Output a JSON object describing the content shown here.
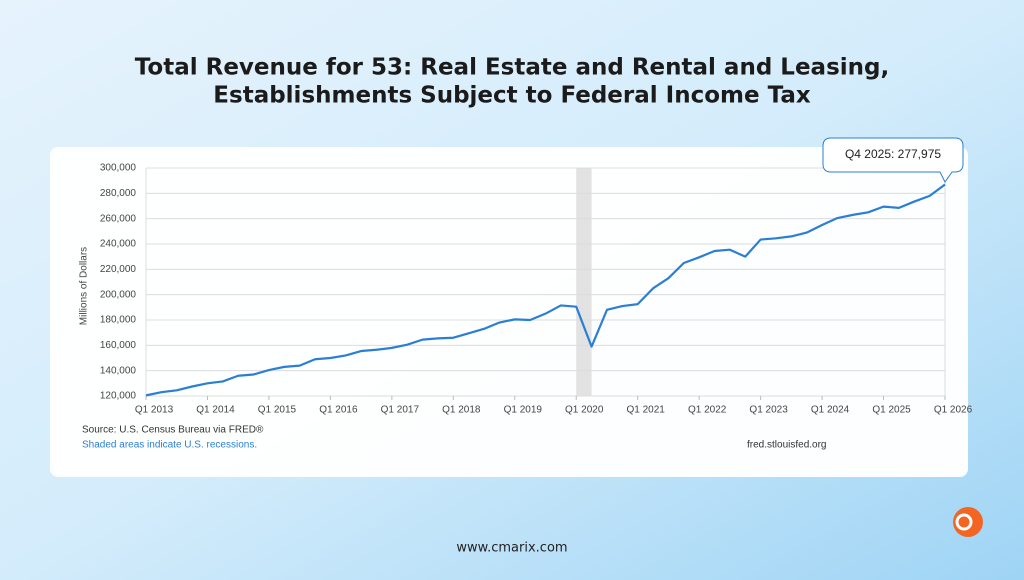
{
  "chart_data": {
    "type": "line",
    "title": [
      "Total Revenue for 53: Real Estate and Rental and Leasing,",
      "Establishments Subject to Federal Income Tax"
    ],
    "y_label": "Millions of Dollars",
    "annotation": "Q4 2025: 277,975",
    "source": "Source: U.S. Census Bureau via FRED®",
    "note": "Shaded areas indicate U.S. recessions.",
    "credit": "fred.stlouisfed.org",
    "footer": "www.cmarix.com",
    "x": [
      2013,
      2013.25,
      2013.5,
      2013.75,
      2014,
      2014.25,
      2014.5,
      2014.75,
      2015,
      2015.25,
      2015.5,
      2015.75,
      2016,
      2016.25,
      2016.5,
      2016.75,
      2017,
      2017.25,
      2017.5,
      2017.75,
      2018,
      2018.25,
      2018.5,
      2018.75,
      2019,
      2019.25,
      2019.5,
      2019.75,
      2020,
      2020.25,
      2020.5,
      2020.75,
      2021,
      2021.25,
      2021.5,
      2021.75,
      2022,
      2022.25,
      2022.5,
      2022.75,
      2023,
      2023.25,
      2023.5,
      2023.75,
      2024,
      2024.25,
      2024.5,
      2024.75,
      2025,
      2025.25,
      2025.5,
      2025.75,
      2026
    ],
    "series": [
      {
        "name": "Total Revenue",
        "color": "#2a7fd4",
        "values": [
          120500,
          123000,
          124500,
          127500,
          130000,
          131500,
          136000,
          137000,
          140500,
          143000,
          144000,
          149000,
          150000,
          152000,
          155500,
          156500,
          158000,
          160500,
          164500,
          165500,
          166000,
          169500,
          173000,
          178000,
          180500,
          180000,
          185000,
          191500,
          190500,
          159000,
          188000,
          191000,
          192500,
          205000,
          213000,
          225000,
          229500,
          234500,
          235500,
          230000,
          243500,
          244500,
          246000,
          249000,
          255000,
          260500,
          263000,
          265000,
          269500,
          268500,
          273500,
          277975,
          287000
        ]
      }
    ],
    "recessions": [
      [
        2020,
        2020.25
      ]
    ],
    "xlim": [
      2013,
      2026
    ],
    "xticks": [
      {
        "value": 2013,
        "label": "Q1 2013"
      },
      {
        "value": 2014,
        "label": "Q1 2014"
      },
      {
        "value": 2015,
        "label": "Q1 2015"
      },
      {
        "value": 2016,
        "label": "Q1 2016"
      },
      {
        "value": 2017,
        "label": "Q1 2017"
      },
      {
        "value": 2018,
        "label": "Q1 2018"
      },
      {
        "value": 2019,
        "label": "Q1 2019"
      },
      {
        "value": 2020,
        "label": "Q1 2020"
      },
      {
        "value": 2021,
        "label": "Q1 2021"
      },
      {
        "value": 2022,
        "label": "Q1 2022"
      },
      {
        "value": 2023,
        "label": "Q1 2023"
      },
      {
        "value": 2024,
        "label": "Q1 2024"
      },
      {
        "value": 2025,
        "label": "Q1 2025"
      },
      {
        "value": 2026,
        "label": "Q1 2026"
      }
    ],
    "ylim": [
      120000,
      300000
    ],
    "yticks": [
      {
        "value": 120000,
        "label": "120,000"
      },
      {
        "value": 140000,
        "label": "140,000"
      },
      {
        "value": 160000,
        "label": "160,000"
      },
      {
        "value": 180000,
        "label": "180,000"
      },
      {
        "value": 200000,
        "label": "200,000"
      },
      {
        "value": 220000,
        "label": "220,000"
      },
      {
        "value": 240000,
        "label": "240,000"
      },
      {
        "value": 260000,
        "label": "260,000"
      },
      {
        "value": 280000,
        "label": "280,000"
      },
      {
        "value": 300000,
        "label": "300,000"
      }
    ],
    "grid": true
  }
}
